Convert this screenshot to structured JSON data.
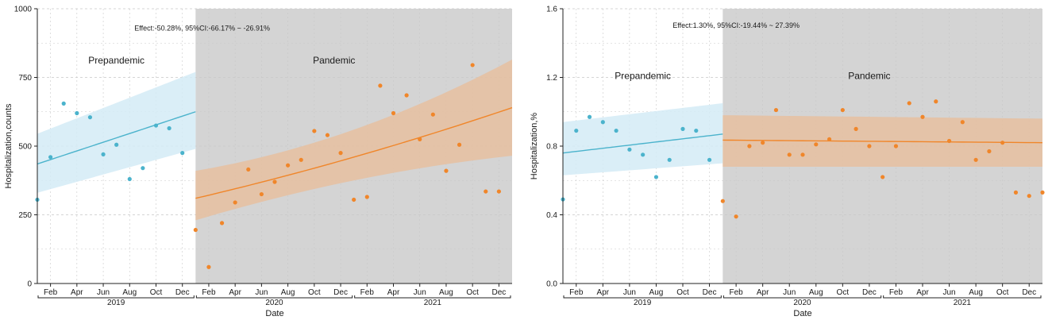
{
  "colors": {
    "pre": "#4bb3cc",
    "pre_band": "#d3ebf6",
    "pan": "#f0862a",
    "pan_band": "#e6bfa0",
    "pan_bg": "#d4d4d4",
    "grid": "#c8c8c8",
    "axis": "#222222"
  },
  "chart_data": [
    {
      "type": "scatter",
      "title": "",
      "xlabel": "Date",
      "ylabel": "Hospitalization,counts",
      "ylim": [
        0,
        1000
      ],
      "yticks": [
        0,
        250,
        500,
        750,
        1000
      ],
      "ytick_labels": [
        "0",
        "250",
        "500",
        "750",
        "1000"
      ],
      "xlim": [
        0,
        36
      ],
      "xticks": [
        1,
        3,
        5,
        7,
        9,
        11,
        13,
        15,
        17,
        19,
        21,
        23,
        25,
        27,
        29,
        31,
        33,
        35
      ],
      "xtick_labels": [
        "Feb",
        "Apr",
        "Jun",
        "Aug",
        "Oct",
        "Dec",
        "Feb",
        "Apr",
        "Jun",
        "Aug",
        "Oct",
        "Dec",
        "Feb",
        "Apr",
        "Jun",
        "Aug",
        "Oct",
        "Dec"
      ],
      "years": [
        {
          "label": "2019",
          "start": 0,
          "end": 12
        },
        {
          "label": "2020",
          "start": 12,
          "end": 24
        },
        {
          "label": "2021",
          "start": 24,
          "end": 36
        }
      ],
      "interruption": 12,
      "annotation": "Effect:-50.28%, 95%CI:-66.17% ~ -26.91%",
      "annotation_at": {
        "x": 12.5,
        "y": 920
      },
      "period_labels": [
        {
          "text": "Prepandemic",
          "x": 6,
          "y": 800
        },
        {
          "text": "Pandemic",
          "x": 22.5,
          "y": 800
        }
      ],
      "series": [
        {
          "name": "Prepandemic",
          "x": [
            0,
            1,
            2,
            3,
            4,
            5,
            6,
            7,
            8,
            9,
            10,
            11
          ],
          "y": [
            305,
            460,
            655,
            620,
            605,
            470,
            505,
            380,
            420,
            575,
            565,
            475
          ],
          "fit": [
            [
              0,
              435
            ],
            [
              12,
              625
            ]
          ],
          "band": {
            "upper": [
              [
                0,
                545
              ],
              [
                12,
                770
              ]
            ],
            "lower": [
              [
                0,
                330
              ],
              [
                12,
                490
              ]
            ]
          }
        },
        {
          "name": "Pandemic",
          "x": [
            12,
            13,
            14,
            15,
            16,
            17,
            18,
            19,
            20,
            21,
            22,
            23,
            24,
            25,
            26,
            27,
            28,
            29,
            30,
            31,
            32,
            33,
            34,
            35
          ],
          "y": [
            195,
            60,
            220,
            295,
            415,
            325,
            370,
            430,
            450,
            555,
            540,
            475,
            305,
            315,
            720,
            620,
            685,
            525,
            615,
            410,
            505,
            795,
            335,
            335
          ],
          "fit": [
            [
              12,
              310
            ],
            [
              24,
              460
            ],
            [
              36,
              640
            ]
          ],
          "band": {
            "upper": [
              [
                12,
                410
              ],
              [
                24,
                560
              ],
              [
                36,
                815
              ]
            ],
            "lower": [
              [
                12,
                230
              ],
              [
                24,
                375
              ],
              [
                36,
                465
              ]
            ]
          }
        }
      ]
    },
    {
      "type": "scatter",
      "title": "",
      "xlabel": "Date",
      "ylabel": "Hospitalization,%",
      "ylim": [
        0,
        1.6
      ],
      "yticks": [
        0,
        0.4,
        0.8,
        1.2,
        1.6
      ],
      "ytick_labels": [
        "0.0",
        "0.4",
        "0.8",
        "1.2",
        "1.6"
      ],
      "xlim": [
        0,
        36
      ],
      "xticks": [
        1,
        3,
        5,
        7,
        9,
        11,
        13,
        15,
        17,
        19,
        21,
        23,
        25,
        27,
        29,
        31,
        33,
        35
      ],
      "xtick_labels": [
        "Feb",
        "Apr",
        "Jun",
        "Aug",
        "Oct",
        "Dec",
        "Feb",
        "Apr",
        "Jun",
        "Aug",
        "Oct",
        "Dec",
        "Feb",
        "Apr",
        "Jun",
        "Aug",
        "Oct",
        "Dec"
      ],
      "years": [
        {
          "label": "2019",
          "start": 0,
          "end": 12
        },
        {
          "label": "2020",
          "start": 12,
          "end": 24
        },
        {
          "label": "2021",
          "start": 24,
          "end": 36
        }
      ],
      "interruption": 12,
      "annotation": "Effect:1.30%, 95%CI:-19.44% ~ 27.39%",
      "annotation_at": {
        "x": 13,
        "y": 1.49
      },
      "period_labels": [
        {
          "text": "Prepandemic",
          "x": 6,
          "y": 1.19
        },
        {
          "text": "Pandemic",
          "x": 23,
          "y": 1.19
        }
      ],
      "series": [
        {
          "name": "Prepandemic",
          "x": [
            0,
            1,
            2,
            3,
            4,
            5,
            6,
            7,
            8,
            9,
            10,
            11
          ],
          "y": [
            0.49,
            0.89,
            0.97,
            0.94,
            0.89,
            0.78,
            0.75,
            0.62,
            0.72,
            0.9,
            0.89,
            0.72
          ],
          "fit": [
            [
              0,
              0.76
            ],
            [
              12,
              0.87
            ]
          ],
          "band": {
            "upper": [
              [
                0,
                0.94
              ],
              [
                12,
                1.05
              ]
            ],
            "lower": [
              [
                0,
                0.63
              ],
              [
                12,
                0.7
              ]
            ]
          }
        },
        {
          "name": "Pandemic",
          "x": [
            12,
            13,
            14,
            15,
            16,
            17,
            18,
            19,
            20,
            21,
            22,
            23,
            24,
            25,
            26,
            27,
            28,
            29,
            30,
            31,
            32,
            33,
            34,
            35,
            36
          ],
          "y": [
            0.48,
            0.39,
            0.8,
            0.82,
            1.01,
            0.75,
            0.75,
            0.81,
            0.84,
            1.01,
            0.9,
            0.8,
            0.62,
            0.8,
            1.05,
            0.97,
            1.06,
            0.83,
            0.94,
            0.72,
            0.77,
            0.82,
            0.53,
            0.51,
            0.53
          ],
          "fit": [
            [
              12,
              0.835
            ],
            [
              36,
              0.82
            ]
          ],
          "band": {
            "upper": [
              [
                12,
                0.98
              ],
              [
                36,
                0.96
              ]
            ],
            "lower": [
              [
                12,
                0.68
              ],
              [
                36,
                0.68
              ]
            ]
          }
        }
      ]
    }
  ]
}
